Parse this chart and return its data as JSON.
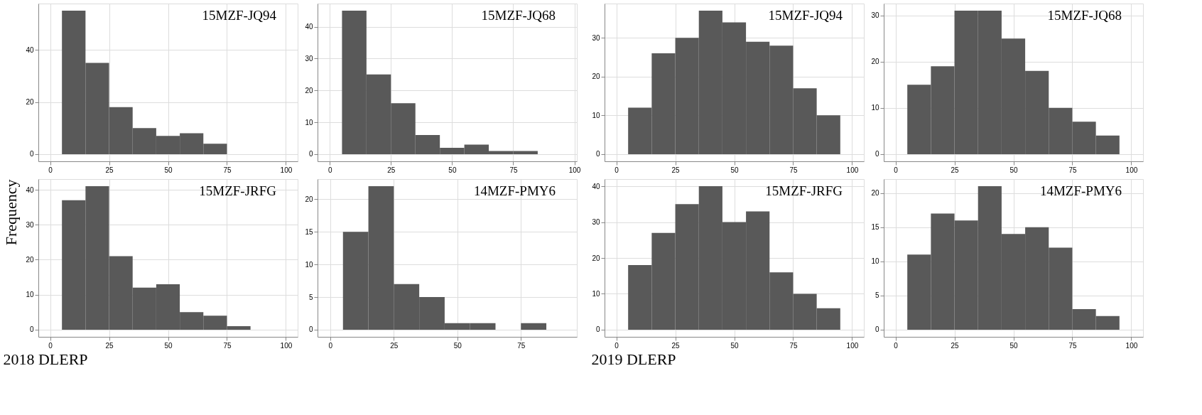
{
  "chart_data": [
    {
      "type": "histogram",
      "annotations": [
        "15MZF-JQ94"
      ],
      "bins": [
        5,
        15,
        25,
        35,
        45,
        55,
        65,
        75
      ],
      "values": [
        55,
        35,
        18,
        10,
        7,
        8,
        4
      ],
      "color": "#595959",
      "xlim": [
        -5,
        105
      ],
      "xticks": [
        0,
        25,
        50,
        75,
        100
      ],
      "ylim": [
        -2.75,
        57.75
      ],
      "yticks": [
        0,
        20,
        40
      ],
      "grid": true
    },
    {
      "type": "histogram",
      "annotations": [
        "15MZF-JQ68"
      ],
      "bins": [
        5,
        15,
        25,
        35,
        45,
        55,
        65,
        75,
        85
      ],
      "values": [
        45,
        25,
        16,
        6,
        2,
        3,
        1,
        1
      ],
      "color": "#595959",
      "xlim": [
        -5,
        101
      ],
      "xticks": [
        0,
        25,
        50,
        75,
        100
      ],
      "ylim": [
        -2.25,
        47.25
      ],
      "yticks": [
        0,
        10,
        20,
        30,
        40
      ],
      "grid": true
    },
    {
      "type": "histogram",
      "annotations": [
        "15MZF-JQ94"
      ],
      "bins": [
        5,
        15,
        25,
        35,
        45,
        55,
        65,
        75,
        85,
        95
      ],
      "values": [
        12,
        26,
        30,
        37,
        34,
        29,
        28,
        17,
        10
      ],
      "color": "#595959",
      "xlim": [
        -5,
        105
      ],
      "xticks": [
        0,
        25,
        50,
        75,
        100
      ],
      "ylim": [
        -1.85,
        38.85
      ],
      "yticks": [
        0,
        10,
        20,
        30
      ],
      "grid": true
    },
    {
      "type": "histogram",
      "annotations": [
        "15MZF-JQ68"
      ],
      "bins": [
        5,
        15,
        25,
        35,
        45,
        55,
        65,
        75,
        85,
        95
      ],
      "values": [
        15,
        19,
        31,
        31,
        25,
        18,
        10,
        7,
        4
      ],
      "color": "#595959",
      "xlim": [
        -5,
        105
      ],
      "xticks": [
        0,
        25,
        50,
        75,
        100
      ],
      "ylim": [
        -1.55,
        32.55
      ],
      "yticks": [
        0,
        10,
        20,
        30
      ],
      "grid": true
    },
    {
      "type": "histogram",
      "annotations": [
        "15MZF-JRFG"
      ],
      "ylabel": "Frequency",
      "xlabel": "2018 DLERP",
      "bins": [
        5,
        15,
        25,
        35,
        45,
        55,
        65,
        75,
        85
      ],
      "values": [
        37,
        41,
        21,
        12,
        13,
        5,
        4,
        1
      ],
      "color": "#595959",
      "xlim": [
        -5,
        105
      ],
      "xticks": [
        0,
        25,
        50,
        75,
        100
      ],
      "ylim": [
        -2.05,
        43.05
      ],
      "yticks": [
        0,
        10,
        20,
        30,
        40
      ],
      "grid": true
    },
    {
      "type": "histogram",
      "annotations": [
        "14MZF-PMY6"
      ],
      "bins": [
        5,
        15,
        25,
        35,
        45,
        55,
        65,
        75,
        85
      ],
      "values": [
        15,
        22,
        7,
        5,
        1,
        1,
        0,
        1
      ],
      "color": "#595959",
      "xlim": [
        -5,
        97
      ],
      "xticks": [
        0,
        25,
        50,
        75
      ],
      "ylim": [
        -1.1,
        23.1
      ],
      "yticks": [
        0,
        5,
        10,
        15,
        20
      ],
      "grid": true
    },
    {
      "type": "histogram",
      "annotations": [
        "15MZF-JRFG"
      ],
      "xlabel": "2019 DLERP",
      "bins": [
        5,
        15,
        25,
        35,
        45,
        55,
        65,
        75,
        85,
        95
      ],
      "values": [
        18,
        27,
        35,
        40,
        30,
        33,
        16,
        10,
        6
      ],
      "color": "#595959",
      "xlim": [
        -5,
        105
      ],
      "xticks": [
        0,
        25,
        50,
        75,
        100
      ],
      "ylim": [
        -2,
        42
      ],
      "yticks": [
        0,
        10,
        20,
        30,
        40
      ],
      "grid": true
    },
    {
      "type": "histogram",
      "annotations": [
        "14MZF-PMY6"
      ],
      "bins": [
        5,
        15,
        25,
        35,
        45,
        55,
        65,
        75,
        85,
        95
      ],
      "values": [
        11,
        17,
        16,
        21,
        14,
        15,
        12,
        3,
        2
      ],
      "color": "#595959",
      "xlim": [
        -5,
        105
      ],
      "xticks": [
        0,
        25,
        50,
        75,
        100
      ],
      "ylim": [
        -1.05,
        22.05
      ],
      "yticks": [
        0,
        5,
        10,
        15,
        20
      ],
      "grid": true
    }
  ]
}
